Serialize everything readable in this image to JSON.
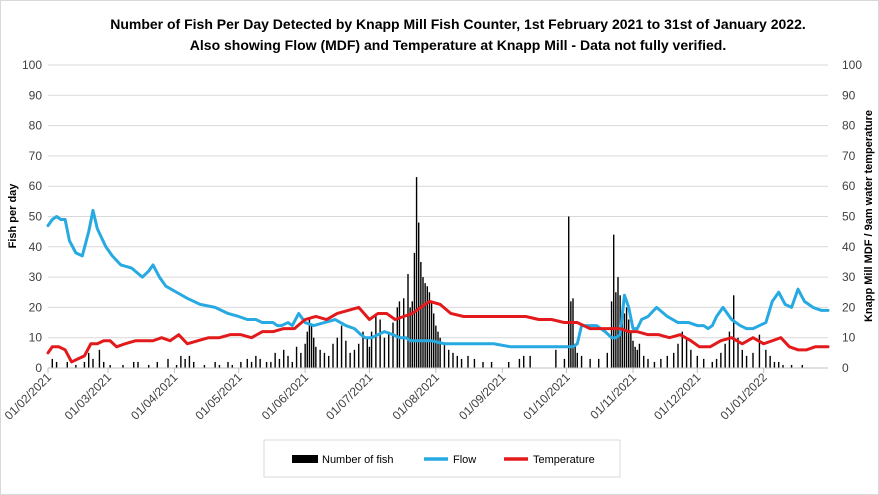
{
  "chart_data": {
    "type": "bar",
    "title_lines": [
      "Number of Fish Per Day Detected by Knapp Mill Fish Counter, 1st February 2021 to 31st of January 2022.",
      "Also showing Flow (MDF) and Temperature at Knapp Mill - Data not fully verified."
    ],
    "ylabel": "Fish per day",
    "y2label": "Knapp Mill MDF / 9am water temperature",
    "ylim": [
      0,
      100
    ],
    "y2lim": [
      0,
      100
    ],
    "y_ticks": [
      "0",
      "10",
      "20",
      "30",
      "40",
      "50",
      "60",
      "70",
      "80",
      "90",
      "100"
    ],
    "y2_ticks": [
      "0",
      "10",
      "20",
      "30",
      "40",
      "50",
      "60",
      "70",
      "80",
      "90",
      "100"
    ],
    "x_start": "2021-02-01",
    "x_end": "2022-01-31",
    "x_ticks": [
      "01/02/2021",
      "01/03/2021",
      "01/04/2021",
      "01/05/2021",
      "01/06/2021",
      "01/07/2021",
      "01/08/2021",
      "01/09/2021",
      "01/10/2021",
      "01/11/2021",
      "01/12/2021",
      "01/01/2022"
    ],
    "grid": true,
    "legend_position": "bottom",
    "legend": [
      "Number of fish",
      "Flow",
      "Temperature"
    ],
    "colors": {
      "fish": "#000000",
      "flow": "#27a9e1",
      "temperature": "#e31a1c",
      "grid": "#d9d9d9"
    },
    "fish_series": {
      "name": "Number of fish",
      "x": [
        "2021-02-03",
        "2021-02-05",
        "2021-02-10",
        "2021-02-14",
        "2021-02-18",
        "2021-02-20",
        "2021-02-22",
        "2021-02-25",
        "2021-02-27",
        "2021-03-02",
        "2021-03-08",
        "2021-03-13",
        "2021-03-15",
        "2021-03-20",
        "2021-03-24",
        "2021-03-29",
        "2021-04-02",
        "2021-04-04",
        "2021-04-06",
        "2021-04-08",
        "2021-04-10",
        "2021-04-15",
        "2021-04-20",
        "2021-04-22",
        "2021-04-26",
        "2021-04-28",
        "2021-05-02",
        "2021-05-05",
        "2021-05-07",
        "2021-05-09",
        "2021-05-11",
        "2021-05-14",
        "2021-05-16",
        "2021-05-18",
        "2021-05-20",
        "2021-05-22",
        "2021-05-24",
        "2021-05-26",
        "2021-05-28",
        "2021-05-30",
        "2021-06-01",
        "2021-06-02",
        "2021-06-03",
        "2021-06-04",
        "2021-06-05",
        "2021-06-06",
        "2021-06-08",
        "2021-06-10",
        "2021-06-12",
        "2021-06-14",
        "2021-06-16",
        "2021-06-18",
        "2021-06-20",
        "2021-06-22",
        "2021-06-24",
        "2021-06-26",
        "2021-06-28",
        "2021-06-30",
        "2021-07-01",
        "2021-07-02",
        "2021-07-04",
        "2021-07-06",
        "2021-07-08",
        "2021-07-10",
        "2021-07-12",
        "2021-07-14",
        "2021-07-15",
        "2021-07-17",
        "2021-07-19",
        "2021-07-20",
        "2021-07-21",
        "2021-07-22",
        "2021-07-23",
        "2021-07-24",
        "2021-07-25",
        "2021-07-26",
        "2021-07-27",
        "2021-07-28",
        "2021-07-29",
        "2021-07-30",
        "2021-07-31",
        "2021-08-01",
        "2021-08-02",
        "2021-08-03",
        "2021-08-05",
        "2021-08-07",
        "2021-08-09",
        "2021-08-11",
        "2021-08-13",
        "2021-08-16",
        "2021-08-19",
        "2021-08-23",
        "2021-08-27",
        "2021-09-04",
        "2021-09-09",
        "2021-09-11",
        "2021-09-14",
        "2021-09-26",
        "2021-09-30",
        "2021-10-02",
        "2021-10-03",
        "2021-10-04",
        "2021-10-05",
        "2021-10-06",
        "2021-10-08",
        "2021-10-12",
        "2021-10-16",
        "2021-10-20",
        "2021-10-22",
        "2021-10-23",
        "2021-10-24",
        "2021-10-25",
        "2021-10-26",
        "2021-10-27",
        "2021-10-28",
        "2021-10-29",
        "2021-10-30",
        "2021-10-31",
        "2021-11-01",
        "2021-11-02",
        "2021-11-03",
        "2021-11-04",
        "2021-11-06",
        "2021-11-08",
        "2021-11-11",
        "2021-11-14",
        "2021-11-17",
        "2021-11-20",
        "2021-11-22",
        "2021-11-24",
        "2021-11-26",
        "2021-11-28",
        "2021-12-01",
        "2021-12-04",
        "2021-12-08",
        "2021-12-10",
        "2021-12-12",
        "2021-12-14",
        "2021-12-16",
        "2021-12-18",
        "2021-12-20",
        "2021-12-22",
        "2021-12-24",
        "2021-12-27",
        "2021-12-30",
        "2022-01-02",
        "2022-01-04",
        "2022-01-06",
        "2022-01-08",
        "2022-01-10",
        "2022-01-14",
        "2022-01-19"
      ],
      "values": [
        3,
        2,
        2,
        1,
        2,
        5,
        3,
        6,
        2,
        1,
        1,
        2,
        2,
        1,
        2,
        3,
        1,
        4,
        3,
        4,
        2,
        1,
        2,
        1,
        2,
        1,
        2,
        3,
        2,
        4,
        3,
        2,
        2,
        5,
        3,
        6,
        4,
        2,
        7,
        5,
        8,
        12,
        16,
        14,
        10,
        7,
        6,
        5,
        4,
        8,
        10,
        14,
        9,
        5,
        6,
        8,
        12,
        10,
        7,
        12,
        18,
        16,
        10,
        12,
        15,
        20,
        22,
        23,
        31,
        20,
        22,
        38,
        63,
        48,
        35,
        30,
        28,
        27,
        25,
        22,
        18,
        14,
        12,
        10,
        8,
        6,
        5,
        4,
        3,
        4,
        3,
        2,
        2,
        2,
        3,
        4,
        4,
        6,
        3,
        50,
        22,
        23,
        8,
        5,
        4,
        3,
        3,
        5,
        22,
        44,
        25,
        30,
        24,
        19,
        18,
        20,
        16,
        12,
        9,
        7,
        6,
        8,
        4,
        3,
        2,
        3,
        4,
        5,
        8,
        12,
        10,
        6,
        4,
        3,
        2,
        3,
        5,
        8,
        12,
        24,
        10,
        6,
        4,
        5,
        11,
        6,
        4,
        2,
        2,
        1,
        1,
        1
      ]
    },
    "flow_series": {
      "name": "Flow",
      "x": [
        "2021-02-01",
        "2021-02-03",
        "2021-02-05",
        "2021-02-07",
        "2021-02-09",
        "2021-02-11",
        "2021-02-14",
        "2021-02-17",
        "2021-02-20",
        "2021-02-22",
        "2021-02-24",
        "2021-02-26",
        "2021-02-28",
        "2021-03-03",
        "2021-03-07",
        "2021-03-12",
        "2021-03-17",
        "2021-03-20",
        "2021-03-22",
        "2021-03-25",
        "2021-03-28",
        "2021-04-02",
        "2021-04-07",
        "2021-04-13",
        "2021-04-20",
        "2021-04-26",
        "2021-05-01",
        "2021-05-05",
        "2021-05-09",
        "2021-05-12",
        "2021-05-15",
        "2021-05-17",
        "2021-05-19",
        "2021-05-21",
        "2021-05-24",
        "2021-05-26",
        "2021-05-29",
        "2021-06-01",
        "2021-06-05",
        "2021-06-10",
        "2021-06-15",
        "2021-06-20",
        "2021-06-24",
        "2021-06-27",
        "2021-06-29",
        "2021-07-02",
        "2021-07-05",
        "2021-07-08",
        "2021-07-12",
        "2021-07-15",
        "2021-07-18",
        "2021-07-20",
        "2021-07-23",
        "2021-07-26",
        "2021-07-30",
        "2021-08-05",
        "2021-08-12",
        "2021-08-20",
        "2021-08-28",
        "2021-09-05",
        "2021-09-12",
        "2021-09-20",
        "2021-09-27",
        "2021-09-30",
        "2021-10-02",
        "2021-10-04",
        "2021-10-06",
        "2021-10-08",
        "2021-10-11",
        "2021-10-15",
        "2021-10-19",
        "2021-10-22",
        "2021-10-24",
        "2021-10-26",
        "2021-10-28",
        "2021-10-30",
        "2021-11-01",
        "2021-11-03",
        "2021-11-05",
        "2021-11-08",
        "2021-11-12",
        "2021-11-17",
        "2021-11-22",
        "2021-11-27",
        "2021-12-01",
        "2021-12-04",
        "2021-12-06",
        "2021-12-08",
        "2021-12-10",
        "2021-12-13",
        "2021-12-17",
        "2021-12-21",
        "2021-12-24",
        "2021-12-27",
        "2021-12-30",
        "2022-01-02",
        "2022-01-05",
        "2022-01-08",
        "2022-01-11",
        "2022-01-14",
        "2022-01-17",
        "2022-01-20",
        "2022-01-24",
        "2022-01-28",
        "2022-01-31"
      ],
      "values": [
        47,
        49,
        50,
        49,
        49,
        42,
        38,
        37,
        45,
        52,
        46,
        43,
        40,
        37,
        34,
        33,
        30,
        32,
        34,
        30,
        27,
        25,
        23,
        21,
        20,
        18,
        17,
        16,
        16,
        15,
        15,
        15,
        14,
        14,
        15,
        14,
        18,
        15,
        14,
        15,
        16,
        14,
        13,
        11,
        10,
        10,
        11,
        12,
        11,
        10,
        10,
        9,
        9,
        9,
        9,
        8,
        8,
        8,
        8,
        7,
        7,
        7,
        7,
        7,
        7,
        7,
        8,
        14,
        14,
        14,
        12,
        10,
        10,
        11,
        24,
        20,
        13,
        13,
        16,
        17,
        20,
        17,
        15,
        15,
        14,
        14,
        13,
        14,
        17,
        20,
        16,
        14,
        13,
        13,
        14,
        15,
        22,
        25,
        21,
        20,
        26,
        22,
        20,
        19,
        19
      ]
    },
    "temperature_series": {
      "name": "Temperature",
      "x": [
        "2021-02-01",
        "2021-02-03",
        "2021-02-06",
        "2021-02-09",
        "2021-02-12",
        "2021-02-15",
        "2021-02-18",
        "2021-02-21",
        "2021-02-24",
        "2021-02-27",
        "2021-03-02",
        "2021-03-05",
        "2021-03-09",
        "2021-03-14",
        "2021-03-18",
        "2021-03-22",
        "2021-03-26",
        "2021-03-30",
        "2021-04-03",
        "2021-04-07",
        "2021-04-12",
        "2021-04-17",
        "2021-04-22",
        "2021-04-27",
        "2021-05-02",
        "2021-05-07",
        "2021-05-12",
        "2021-05-17",
        "2021-05-22",
        "2021-05-27",
        "2021-06-01",
        "2021-06-06",
        "2021-06-11",
        "2021-06-16",
        "2021-06-21",
        "2021-06-26",
        "2021-07-01",
        "2021-07-05",
        "2021-07-09",
        "2021-07-13",
        "2021-07-17",
        "2021-07-21",
        "2021-07-25",
        "2021-07-29",
        "2021-08-03",
        "2021-08-08",
        "2021-08-14",
        "2021-08-20",
        "2021-08-26",
        "2021-09-01",
        "2021-09-06",
        "2021-09-12",
        "2021-09-18",
        "2021-09-24",
        "2021-09-30",
        "2021-10-06",
        "2021-10-12",
        "2021-10-18",
        "2021-10-22",
        "2021-10-26",
        "2021-10-30",
        "2021-11-03",
        "2021-11-08",
        "2021-11-13",
        "2021-11-18",
        "2021-11-23",
        "2021-11-28",
        "2021-12-02",
        "2021-12-07",
        "2021-12-12",
        "2021-12-17",
        "2021-12-22",
        "2021-12-27",
        "2022-01-01",
        "2022-01-05",
        "2022-01-09",
        "2022-01-13",
        "2022-01-17",
        "2022-01-21",
        "2022-01-25",
        "2022-01-31"
      ],
      "values": [
        5,
        7,
        7,
        6,
        2,
        3,
        4,
        8,
        8,
        9,
        9,
        7,
        8,
        9,
        9,
        9,
        10,
        9,
        11,
        8,
        9,
        10,
        10,
        11,
        11,
        10,
        12,
        12,
        13,
        13,
        16,
        17,
        16,
        18,
        19,
        20,
        16,
        18,
        18,
        16,
        17,
        18,
        20,
        22,
        21,
        18,
        17,
        17,
        17,
        17,
        17,
        17,
        16,
        16,
        15,
        15,
        13,
        13,
        13,
        13,
        12,
        12,
        11,
        11,
        10,
        11,
        9,
        7,
        7,
        9,
        10,
        8,
        10,
        8,
        9,
        10,
        7,
        6,
        6,
        7,
        7
      ]
    }
  }
}
